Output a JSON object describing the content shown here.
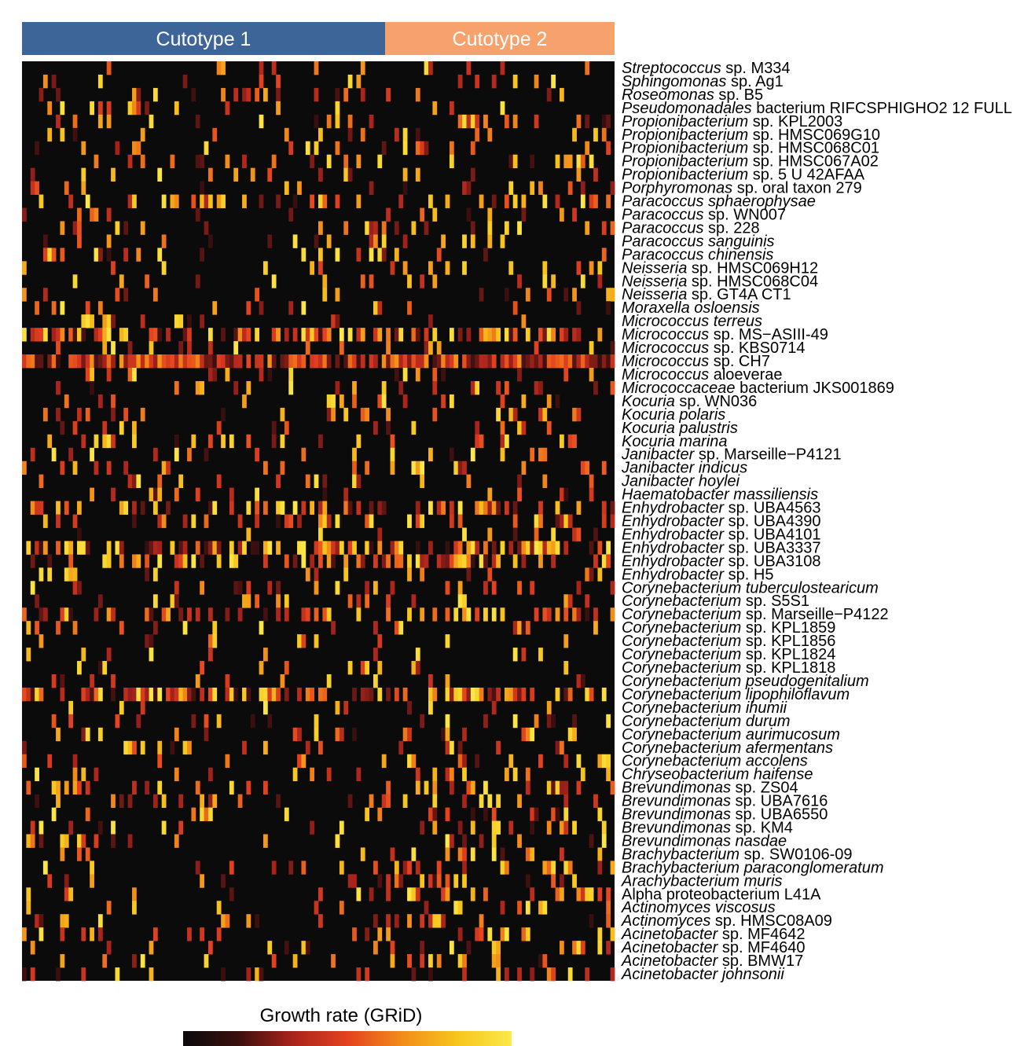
{
  "chart_data": {
    "type": "heatmap",
    "title": "",
    "groups": [
      {
        "name": "Cutotype 1",
        "color": "#3e6598"
      },
      {
        "name": "Cutotype 2",
        "color": "#f7a26c"
      }
    ],
    "rows": [
      {
        "genus": "Streptococcus",
        "rest": "sp. M334",
        "italic_all": false
      },
      {
        "genus": "Sphingomonas",
        "rest": "sp. Ag1",
        "italic_all": false
      },
      {
        "genus": "Roseomonas",
        "rest": "sp. B5",
        "italic_all": false
      },
      {
        "genus": "Pseudomonadales",
        "rest": "bacterium RIFCSPHIGHO2 12 FULL",
        "italic_all": false
      },
      {
        "genus": "Propionibacterium",
        "rest": "sp. KPL2003",
        "italic_all": false
      },
      {
        "genus": "Propionibacterium",
        "rest": "sp. HMSC069G10",
        "italic_all": false
      },
      {
        "genus": "Propionibacterium",
        "rest": "sp. HMSC068C01",
        "italic_all": false
      },
      {
        "genus": "Propionibacterium",
        "rest": "sp. HMSC067A02",
        "italic_all": false
      },
      {
        "genus": "Propionibacterium",
        "rest": "sp. 5 U 42AFAA",
        "italic_all": false
      },
      {
        "genus": "Porphyromonas",
        "rest": "sp. oral taxon 279",
        "italic_all": false
      },
      {
        "genus": "Paracoccus",
        "rest": "sphaerophysae",
        "italic_all": true
      },
      {
        "genus": "Paracoccus",
        "rest": "sp. WN007",
        "italic_all": false
      },
      {
        "genus": "Paracoccus",
        "rest": "sp. 228",
        "italic_all": false
      },
      {
        "genus": "Paracoccus",
        "rest": "sanguinis",
        "italic_all": true
      },
      {
        "genus": "Paracoccus",
        "rest": "chinensis",
        "italic_all": true
      },
      {
        "genus": "Neisseria",
        "rest": "sp. HMSC069H12",
        "italic_all": false
      },
      {
        "genus": "Neisseria",
        "rest": "sp. HMSC068C04",
        "italic_all": false
      },
      {
        "genus": "Neisseria",
        "rest": "sp. GT4A CT1",
        "italic_all": false
      },
      {
        "genus": "Moraxella",
        "rest": "osloensis",
        "italic_all": true
      },
      {
        "genus": "Micrococcus",
        "rest": "terreus",
        "italic_all": true
      },
      {
        "genus": "Micrococcus",
        "rest": "sp. MS−ASIII-49",
        "italic_all": false
      },
      {
        "genus": "Micrococcus",
        "rest": "sp. KBS0714",
        "italic_all": false
      },
      {
        "genus": "Micrococcus",
        "rest": "sp. CH7",
        "italic_all": false
      },
      {
        "genus": "Micrococcus",
        "rest": "aloeverae",
        "italic_all": false
      },
      {
        "genus": "Micrococcaceae",
        "rest": "bacterium JKS001869",
        "italic_all": false
      },
      {
        "genus": "Kocuria",
        "rest": "sp. WN036",
        "italic_all": false
      },
      {
        "genus": "Kocuria",
        "rest": "polaris",
        "italic_all": true
      },
      {
        "genus": "Kocuria",
        "rest": "palustris",
        "italic_all": true
      },
      {
        "genus": "Kocuria",
        "rest": "marina",
        "italic_all": true
      },
      {
        "genus": "Janibacter",
        "rest": "sp. Marseille−P4121",
        "italic_all": false
      },
      {
        "genus": "Janibacter",
        "rest": "indicus",
        "italic_all": true
      },
      {
        "genus": "Janibacter",
        "rest": "hoylei",
        "italic_all": true
      },
      {
        "genus": "Haematobacter",
        "rest": "massiliensis",
        "italic_all": true
      },
      {
        "genus": "Enhydrobacter",
        "rest": "sp. UBA4563",
        "italic_all": false
      },
      {
        "genus": "Enhydrobacter",
        "rest": "sp. UBA4390",
        "italic_all": false
      },
      {
        "genus": "Enhydrobacter",
        "rest": "sp. UBA4101",
        "italic_all": false
      },
      {
        "genus": "Enhydrobacter",
        "rest": "sp. UBA3337",
        "italic_all": false
      },
      {
        "genus": "Enhydrobacter",
        "rest": "sp. UBA3108",
        "italic_all": false
      },
      {
        "genus": "Enhydrobacter",
        "rest": "sp. H5",
        "italic_all": false
      },
      {
        "genus": "Corynebacterium",
        "rest": "tuberculostearicum",
        "italic_all": true
      },
      {
        "genus": "Corynebacterium",
        "rest": "sp. S5S1",
        "italic_all": false
      },
      {
        "genus": "Corynebacterium",
        "rest": "sp. Marseille−P4122",
        "italic_all": false
      },
      {
        "genus": "Corynebacterium",
        "rest": "sp. KPL1859",
        "italic_all": false
      },
      {
        "genus": "Corynebacterium",
        "rest": "sp. KPL1856",
        "italic_all": false
      },
      {
        "genus": "Corynebacterium",
        "rest": "sp. KPL1824",
        "italic_all": false
      },
      {
        "genus": "Corynebacterium",
        "rest": "sp. KPL1818",
        "italic_all": false
      },
      {
        "genus": "Corynebacterium",
        "rest": "pseudogenitalium",
        "italic_all": true
      },
      {
        "genus": "Corynebacterium",
        "rest": "lipophiloflavum",
        "italic_all": true
      },
      {
        "genus": "Corynebacterium",
        "rest": "ihumii",
        "italic_all": true
      },
      {
        "genus": "Corynebacterium",
        "rest": "durum",
        "italic_all": true
      },
      {
        "genus": "Corynebacterium",
        "rest": "aurimucosum",
        "italic_all": true
      },
      {
        "genus": "Corynebacterium",
        "rest": "afermentans",
        "italic_all": true
      },
      {
        "genus": "Corynebacterium",
        "rest": "accolens",
        "italic_all": true
      },
      {
        "genus": "Chryseobacterium",
        "rest": "haifense",
        "italic_all": true
      },
      {
        "genus": "Brevundimonas",
        "rest": "sp. ZS04",
        "italic_all": false
      },
      {
        "genus": "Brevundimonas",
        "rest": "sp. UBA7616",
        "italic_all": false
      },
      {
        "genus": "Brevundimonas",
        "rest": "sp. UBA6550",
        "italic_all": false
      },
      {
        "genus": "Brevundimonas",
        "rest": "sp. KM4",
        "italic_all": false
      },
      {
        "genus": "Brevundimonas",
        "rest": "nasdae",
        "italic_all": true
      },
      {
        "genus": "Brachybacterium",
        "rest": "sp. SW0106-09",
        "italic_all": false
      },
      {
        "genus": "Brachybacterium",
        "rest": "paraconglomeratum",
        "italic_all": true
      },
      {
        "genus": "Arachybacterium",
        "rest": "muris",
        "italic_all": true
      },
      {
        "genus": "",
        "rest": "Alpha proteobacterium L41A",
        "italic_all": false
      },
      {
        "genus": "Actinomyces",
        "rest": "viscosus",
        "italic_all": true
      },
      {
        "genus": "Actinomyces",
        "rest": "sp. HMSC08A09",
        "italic_all": false
      },
      {
        "genus": "Acinetobacter",
        "rest": "sp. MF4642",
        "italic_all": false
      },
      {
        "genus": "Acinetobacter",
        "rest": "sp. MF4640",
        "italic_all": false
      },
      {
        "genus": "Acinetobacter",
        "rest": "sp. BMW17",
        "italic_all": false
      },
      {
        "genus": "Acinetobacter",
        "rest": "johnsonii",
        "italic_all": true
      }
    ],
    "legend": {
      "title": "Growth rate (GRiD)",
      "colors": [
        "#0b0b0b",
        "#3a0f0f",
        "#a8231c",
        "#e4421f",
        "#f28c1a",
        "#f7c51c",
        "#fbe84a"
      ]
    }
  }
}
